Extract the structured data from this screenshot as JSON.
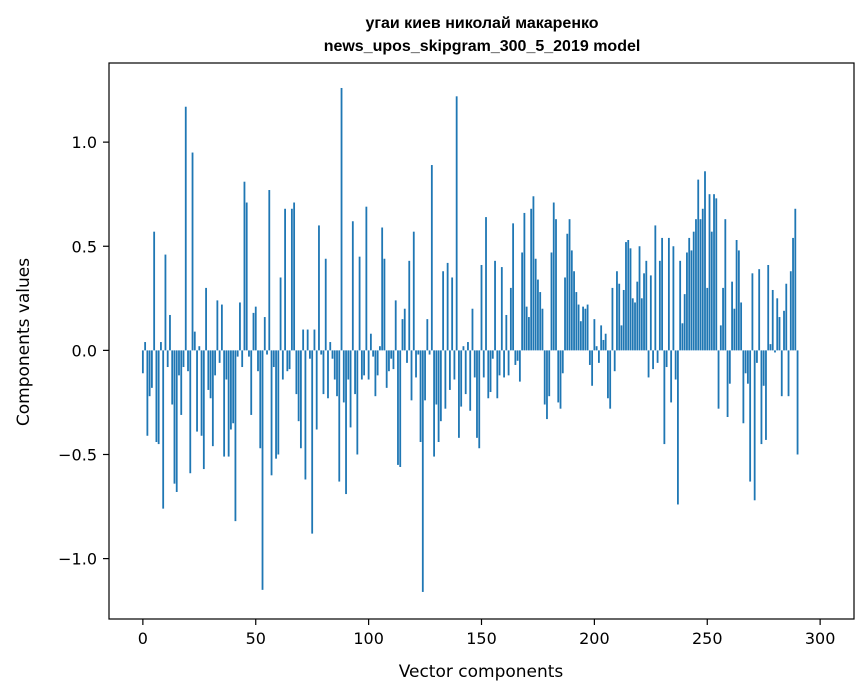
{
  "chart_data": {
    "type": "bar",
    "title": "угаи киев николай макаренко",
    "subtitle": "news_upos_skipgram_300_5_2019 model",
    "xlabel": "Vector components",
    "ylabel": "Components values",
    "xlim": [
      -15,
      315
    ],
    "ylim": [
      -1.29,
      1.38
    ],
    "xticks": [
      0,
      50,
      100,
      150,
      200,
      250,
      300
    ],
    "xtick_labels": [
      "0",
      "50",
      "100",
      "150",
      "200",
      "250",
      "300"
    ],
    "yticks": [
      -1.0,
      -0.5,
      0.0,
      0.5,
      1.0
    ],
    "ytick_labels": [
      "−1.0",
      "−0.5",
      "0.0",
      "0.5",
      "1.0"
    ],
    "grid": false,
    "bar_color": "#1f77b4",
    "values": [
      -0.11,
      0.04,
      -0.41,
      -0.22,
      -0.18,
      0.57,
      -0.44,
      -0.45,
      0.04,
      -0.76,
      0.46,
      -0.08,
      0.17,
      -0.26,
      -0.64,
      -0.68,
      -0.12,
      -0.31,
      -0.08,
      1.17,
      -0.1,
      -0.59,
      0.95,
      0.09,
      -0.39,
      0.02,
      -0.41,
      -0.57,
      0.3,
      -0.19,
      -0.23,
      -0.46,
      -0.12,
      0.24,
      -0.06,
      0.22,
      -0.51,
      -0.14,
      -0.51,
      -0.38,
      -0.35,
      -0.82,
      -0.03,
      0.23,
      -0.08,
      0.81,
      0.71,
      -0.03,
      -0.31,
      0.18,
      0.21,
      -0.1,
      -0.47,
      -1.15,
      0.16,
      -0.02,
      0.77,
      -0.6,
      -0.08,
      -0.52,
      -0.5,
      0.35,
      -0.14,
      0.68,
      -0.1,
      -0.09,
      0.68,
      0.71,
      -0.21,
      -0.34,
      -0.47,
      0.1,
      -0.62,
      0.1,
      -0.04,
      -0.88,
      0.1,
      -0.38,
      0.6,
      -0.02,
      -0.21,
      0.44,
      -0.23,
      0.04,
      -0.04,
      -0.14,
      -0.22,
      -0.63,
      1.26,
      -0.25,
      -0.69,
      -0.14,
      -0.37,
      0.62,
      -0.21,
      -0.5,
      0.45,
      -0.14,
      -0.12,
      0.69,
      -0.14,
      0.08,
      -0.03,
      -0.22,
      -0.12,
      0.02,
      0.59,
      0.44,
      -0.18,
      -0.1,
      -0.04,
      -0.09,
      0.24,
      -0.55,
      -0.56,
      0.15,
      0.2,
      -0.06,
      0.43,
      -0.24,
      0.57,
      -0.13,
      -0.02,
      -0.44,
      -1.16,
      -0.24,
      0.15,
      -0.02,
      0.89,
      -0.51,
      -0.26,
      -0.44,
      -0.34,
      0.38,
      -0.28,
      0.42,
      -0.19,
      0.35,
      -0.14,
      1.22,
      -0.42,
      -0.27,
      0.02,
      -0.21,
      0.04,
      -0.29,
      0.2,
      -0.13,
      -0.42,
      -0.47,
      0.41,
      -0.13,
      0.64,
      -0.23,
      -0.2,
      -0.04,
      0.43,
      -0.23,
      -0.12,
      0.4,
      -0.13,
      0.17,
      -0.12,
      0.3,
      0.61,
      -0.07,
      -0.05,
      -0.15,
      0.47,
      0.66,
      0.21,
      0.16,
      0.68,
      0.74,
      0.44,
      0.34,
      0.28,
      0.2,
      -0.26,
      -0.33,
      -0.22,
      0.47,
      0.71,
      0.63,
      -0.25,
      -0.28,
      -0.11,
      0.35,
      0.56,
      0.63,
      0.48,
      0.38,
      0.28,
      0.22,
      0.14,
      0.21,
      0.2,
      0.22,
      -0.07,
      -0.17,
      0.15,
      0.02,
      -0.06,
      0.12,
      0.05,
      0.08,
      -0.23,
      -0.28,
      0.3,
      -0.1,
      0.38,
      0.32,
      0.12,
      0.29,
      0.52,
      0.53,
      0.49,
      0.25,
      0.23,
      0.33,
      0.5,
      0.25,
      0.37,
      0.43,
      -0.13,
      0.36,
      -0.09,
      0.6,
      -0.06,
      0.43,
      0.54,
      -0.45,
      -0.08,
      0.54,
      -0.25,
      0.5,
      -0.14,
      -0.74,
      0.43,
      0.13,
      0.27,
      0.47,
      0.54,
      0.48,
      0.57,
      0.63,
      0.82,
      0.63,
      0.68,
      0.86,
      0.3,
      0.75,
      0.57,
      0.75,
      0.73,
      -0.28,
      0.12,
      0.3,
      0.63,
      -0.32,
      -0.16,
      0.33,
      0.2,
      0.53,
      0.48,
      0.23,
      -0.35,
      -0.11,
      -0.16,
      -0.63,
      0.37,
      -0.72,
      -0.06,
      0.39,
      -0.45,
      -0.17,
      -0.43,
      0.41,
      0.03,
      0.29,
      -0.01,
      0.25,
      0.16,
      -0.22,
      0.19,
      0.32,
      -0.22,
      0.38,
      0.54,
      0.68,
      -0.5
    ]
  }
}
